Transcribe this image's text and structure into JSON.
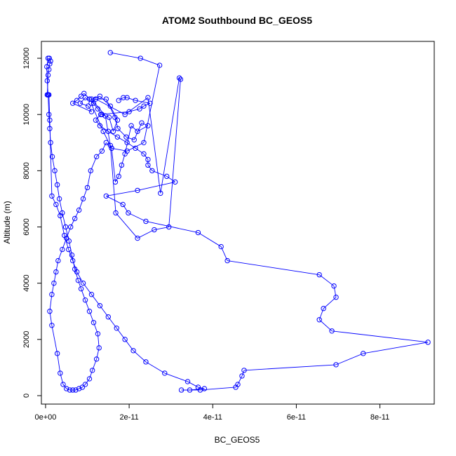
{
  "chart_data": {
    "type": "line",
    "title": "ATOM2 Southbound BC_GEOS5",
    "xlabel": "BC_GEOS5",
    "ylabel": "Altitude (m)",
    "xlim": [
      -1e-12,
      9.3e-11
    ],
    "ylim": [
      -300,
      12600
    ],
    "x_ticks": [
      0,
      2e-11,
      4e-11,
      6e-11,
      8e-11
    ],
    "x_tick_labels": [
      "0e+00",
      "2e-11",
      "4e-11",
      "6e-11",
      "8e-11"
    ],
    "y_ticks": [
      0,
      2000,
      4000,
      6000,
      8000,
      10000,
      12000
    ],
    "y_tick_labels": [
      "0",
      "2000",
      "4000",
      "6000",
      "8000",
      "10000",
      "12000"
    ],
    "line_color": "#0000ff",
    "marker": "open-circle",
    "grid": false,
    "series": [
      {
        "x": [
          1.55e-11,
          2.27e-11,
          2.73e-11,
          2.35e-11,
          1.95e-11,
          1.58e-11,
          1.38e-11,
          1.09e-11,
          1.2e-11,
          1.9e-11,
          2.45e-11,
          2.75e-11,
          3.2e-11,
          3.23e-11,
          2.95e-11,
          2.6e-11,
          2.2e-11,
          1.68e-11,
          1.55e-11,
          1.43e-11,
          1.1e-11,
          1.3e-11,
          1.55e-11,
          1.72e-11,
          1.62e-11,
          1.52e-11,
          1.35e-11,
          1.25e-11,
          1.15e-11,
          9.5e-12,
          8.3e-12,
          1.02e-11,
          1.1e-11,
          6.5e-12,
          7.5e-12,
          8.5e-12,
          9.2e-12,
          1.05e-11,
          1.45e-11,
          1.66e-11,
          1.73e-11,
          1.93e-11,
          2.12e-11,
          2.3e-11,
          2.45e-11,
          2.2e-11,
          2.05e-11,
          1.9e-11,
          1.82e-11,
          1.75e-11,
          1.67e-11,
          1.58e-11,
          1.45e-11,
          1.35e-11,
          1.22e-11,
          1.08e-11,
          1e-11,
          9e-12,
          8e-12,
          7e-12,
          6e-12,
          5e-12,
          4e-12,
          3e-12,
          2.5e-12,
          2e-12,
          1.5e-12,
          1e-12,
          1.5e-12,
          2.8e-12,
          3.5e-12,
          4.2e-12,
          5e-12,
          5.8e-12,
          6.5e-12,
          7.2e-12,
          8e-12,
          8.8e-12,
          9.5e-12,
          1.05e-11,
          1.12e-11,
          1.22e-11,
          1.28e-11,
          1.25e-11,
          1.15e-11,
          1.05e-11,
          9.5e-12,
          8.5e-12,
          7.8e-12,
          7e-12,
          6.3e-12,
          5.6e-12,
          4.8e-12,
          4e-12,
          3.3e-12,
          2.8e-12,
          2.2e-12,
          1.6e-12,
          1.2e-12,
          1e-12,
          8e-13,
          6e-13,
          4e-13,
          3e-13,
          6e-13,
          9e-13,
          1.2e-12,
          1e-12,
          8e-13,
          6e-13,
          4e-13,
          6e-13,
          8e-13,
          1e-12,
          1.5e-12,
          2.5e-12,
          3.5e-12,
          4.5e-12,
          5.5e-12,
          6.5e-12,
          7.5e-12,
          9e-12,
          1.1e-11,
          1.3e-11,
          1.5e-11,
          1.7e-11,
          1.9e-11,
          2.1e-11,
          2.4e-11,
          2.85e-11,
          3.4e-11,
          3.65e-11,
          3.8e-11,
          3.45e-11,
          3.25e-11,
          3.7e-11,
          4.55e-11,
          4.6e-11,
          4.7e-11,
          4.75e-11,
          6.95e-11,
          7.6e-11,
          9.15e-11,
          6.85e-11,
          6.55e-11,
          6.65e-11,
          6.95e-11,
          6.9e-11,
          6.55e-11,
          4.35e-11,
          4.2e-11,
          3.65e-11,
          2.4e-11,
          1.98e-11,
          1.85e-11,
          1.45e-11,
          2.2e-11,
          3.1e-11,
          2.9e-11,
          2.55e-11,
          2.45e-11,
          2.45e-11,
          2.35e-11,
          2.15e-11,
          1.95e-11,
          1.72e-11,
          1.5e-11,
          1.3e-11,
          1.2e-11,
          1.32e-11,
          2e-11,
          2.25e-11,
          2.35e-11,
          2.5e-11,
          2.15e-11,
          1.95e-11,
          1.86e-11,
          1.75e-11
        ],
        "y": [
          12200,
          12000,
          11750,
          9000,
          8700,
          8800,
          9400,
          10400,
          10550,
          10000,
          10600,
          7200,
          11300,
          11250,
          6000,
          5900,
          5600,
          6500,
          8900,
          9950,
          10550,
          10650,
          10300,
          9800,
          9400,
          9900,
          10000,
          10200,
          10400,
          10600,
          10400,
          10300,
          10100,
          10400,
          10500,
          10650,
          10750,
          10550,
          10550,
          9900,
          9500,
          9200,
          9100,
          9700,
          9600,
          9400,
          9600,
          8600,
          8200,
          7800,
          7600,
          8800,
          9000,
          8700,
          8500,
          8000,
          7400,
          7000,
          6600,
          6300,
          6000,
          5600,
          5200,
          4800,
          4400,
          4000,
          3600,
          3000,
          2500,
          1500,
          800,
          400,
          250,
          200,
          200,
          200,
          250,
          300,
          400,
          600,
          900,
          1300,
          1700,
          2200,
          2600,
          3000,
          3400,
          3800,
          4100,
          4500,
          5000,
          5500,
          6000,
          6500,
          7000,
          7500,
          8000,
          8500,
          9000,
          9500,
          10000,
          10700,
          11200,
          11700,
          12000,
          12000,
          11900,
          11800,
          11600,
          11400,
          10700,
          10700,
          10700,
          9800,
          7100,
          6800,
          6400,
          5700,
          5200,
          4800,
          4400,
          4000,
          3600,
          3200,
          2800,
          2400,
          2000,
          1600,
          1200,
          800,
          500,
          300,
          250,
          200,
          200,
          200,
          300,
          400,
          700,
          900,
          1100,
          1500,
          1900,
          2300,
          2700,
          3100,
          3500,
          3900,
          4300,
          4800,
          5300,
          5800,
          6200,
          6500,
          6800,
          7100,
          7300,
          7600,
          7800,
          8000,
          8200,
          8400,
          8600,
          8800,
          9000,
          9200,
          9400,
          9600,
          9800,
          10000,
          10100,
          10200,
          10300,
          10400,
          10500,
          10600,
          10600,
          10500
        ]
      }
    ]
  }
}
